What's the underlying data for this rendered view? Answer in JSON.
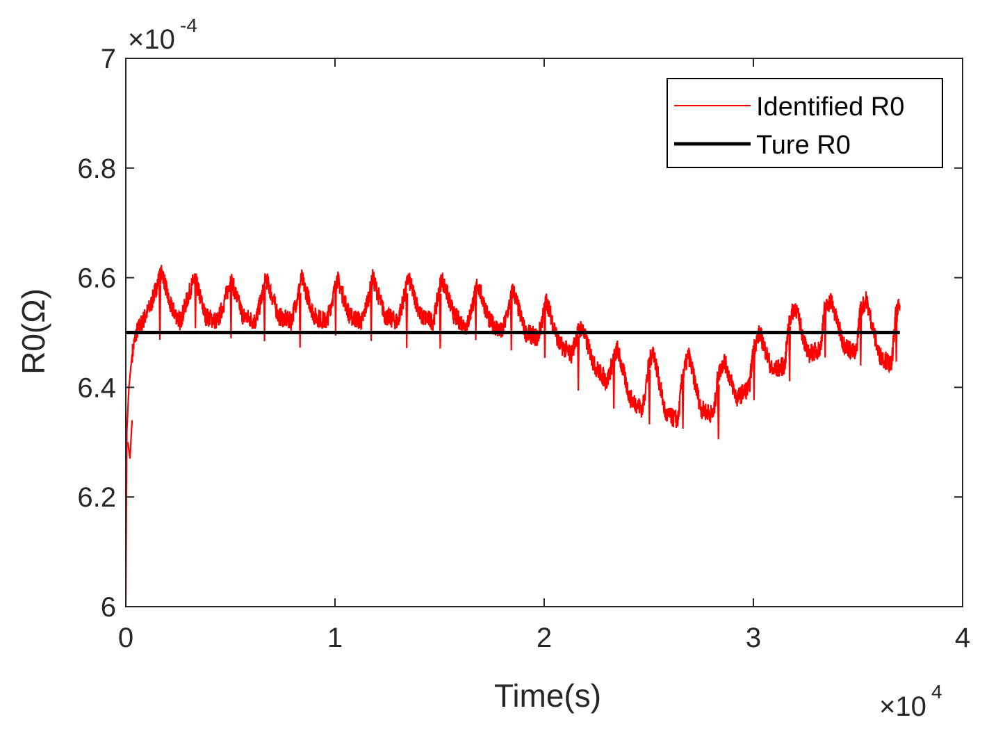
{
  "chart_data": {
    "type": "line",
    "title": "",
    "xlabel": "Time(s)",
    "ylabel": "R0(Ω)",
    "xlim": [
      0,
      4
    ],
    "ylim": [
      6.0,
      7.0
    ],
    "x_scale_label": {
      "base": "×10",
      "exp": "4"
    },
    "y_scale_label": {
      "base": "×10",
      "exp": "-4"
    },
    "x_ticks": [
      0,
      1,
      2,
      3,
      4
    ],
    "x_tick_labels": [
      "0",
      "1",
      "2",
      "3",
      "4"
    ],
    "y_ticks": [
      6.0,
      6.2,
      6.4,
      6.6,
      6.8,
      7.0
    ],
    "y_tick_labels": [
      "6",
      "6.2",
      "6.4",
      "6.6",
      "6.8",
      "7"
    ],
    "grid": false,
    "legend_position": "top-right",
    "series": [
      {
        "name": "Identified R0",
        "color": "#ff0000",
        "x": [
          0.0,
          0.005,
          0.015,
          0.03,
          0.05,
          0.08,
          0.12,
          0.16,
          0.175,
          0.21,
          0.26,
          0.31,
          0.33,
          0.38,
          0.44,
          0.49,
          0.5,
          0.56,
          0.62,
          0.66,
          0.67,
          0.73,
          0.79,
          0.83,
          0.84,
          0.9,
          0.96,
          1.0,
          1.01,
          1.07,
          1.13,
          1.17,
          1.18,
          1.24,
          1.3,
          1.34,
          1.35,
          1.41,
          1.47,
          1.5,
          1.51,
          1.57,
          1.63,
          1.67,
          1.68,
          1.74,
          1.8,
          1.84,
          1.85,
          1.91,
          1.97,
          2.0,
          2.01,
          2.07,
          2.13,
          2.16,
          2.18,
          2.24,
          2.3,
          2.33,
          2.35,
          2.41,
          2.47,
          2.5,
          2.52,
          2.58,
          2.64,
          2.66,
          2.69,
          2.75,
          2.81,
          2.83,
          2.86,
          2.92,
          2.98,
          3.0,
          3.03,
          3.09,
          3.15,
          3.17,
          3.2,
          3.26,
          3.32,
          3.34,
          3.37,
          3.43,
          3.49,
          3.51,
          3.54,
          3.6,
          3.66,
          3.68,
          3.7
        ],
        "values": [
          6.0,
          6.32,
          6.4,
          6.46,
          6.5,
          6.52,
          6.55,
          6.6,
          6.61,
          6.55,
          6.52,
          6.58,
          6.6,
          6.53,
          6.52,
          6.58,
          6.6,
          6.53,
          6.52,
          6.58,
          6.6,
          6.53,
          6.52,
          6.58,
          6.6,
          6.53,
          6.52,
          6.58,
          6.6,
          6.53,
          6.52,
          6.58,
          6.6,
          6.53,
          6.52,
          6.58,
          6.6,
          6.53,
          6.52,
          6.58,
          6.6,
          6.53,
          6.51,
          6.57,
          6.59,
          6.52,
          6.5,
          6.56,
          6.58,
          6.5,
          6.49,
          6.54,
          6.56,
          6.48,
          6.46,
          6.5,
          6.51,
          6.44,
          6.41,
          6.45,
          6.47,
          6.38,
          6.36,
          6.44,
          6.47,
          6.35,
          6.34,
          6.42,
          6.46,
          6.36,
          6.35,
          6.42,
          6.45,
          6.38,
          6.4,
          6.47,
          6.5,
          6.43,
          6.44,
          6.52,
          6.55,
          6.46,
          6.47,
          6.54,
          6.56,
          6.48,
          6.46,
          6.54,
          6.56,
          6.46,
          6.44,
          6.53,
          6.55
        ]
      },
      {
        "name": "Ture R0",
        "color": "#000000",
        "x": [
          0.0,
          3.7
        ],
        "values": [
          6.5,
          6.5
        ]
      }
    ]
  }
}
